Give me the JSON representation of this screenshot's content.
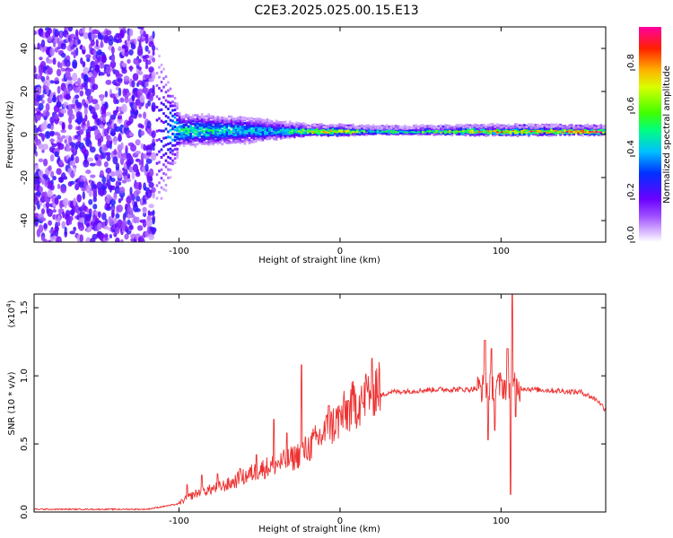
{
  "title": "C2E3.2025.025.00.15.E13",
  "chart_data": [
    {
      "type": "heatmap",
      "xlabel": "Height of straight line (km)",
      "ylabel": "Frequency (Hz)",
      "xlim": [
        -190,
        165
      ],
      "ylim": [
        -50,
        50
      ],
      "xticks": [
        -100,
        0,
        100
      ],
      "yticks": [
        40,
        20,
        0,
        -20,
        -40
      ],
      "colorbar": {
        "label": "Normalized spectral amplitude",
        "range": [
          0,
          1
        ],
        "ticks": [
          "0.0",
          "0.2",
          "0.4",
          "0.6",
          "0.8"
        ]
      },
      "profile": [
        {
          "x": -190,
          "halfwidth": 48,
          "amp": 0.18
        },
        {
          "x": -115,
          "halfwidth": 48,
          "amp": 0.18
        },
        {
          "x": -130,
          "halfwidth": 6,
          "amp": 0.45
        },
        {
          "x": -100,
          "halfwidth": 7,
          "amp": 0.5
        },
        {
          "x": -60,
          "halfwidth": 6,
          "amp": 0.45
        },
        {
          "x": -40,
          "halfwidth": 4,
          "amp": 0.4
        },
        {
          "x": -20,
          "halfwidth": 2,
          "amp": 0.75
        },
        {
          "x": 0,
          "halfwidth": 2,
          "amp": 0.8
        },
        {
          "x": 20,
          "halfwidth": 1.5,
          "amp": 0.5
        },
        {
          "x": 60,
          "halfwidth": 1.5,
          "amp": 0.65
        },
        {
          "x": 100,
          "halfwidth": 2,
          "amp": 0.8
        },
        {
          "x": 165,
          "halfwidth": 1.5,
          "amp": 0.95
        }
      ]
    },
    {
      "type": "line",
      "xlabel": "Height of straight line (km)",
      "ylabel": "SNR (10 * v/v)",
      "ylabel_unit": "(x10",
      "ylabel_unit_exp": "4",
      "ylabel_unit_close": ")",
      "xlim": [
        -190,
        165
      ],
      "ylim": [
        0,
        1.6
      ],
      "xticks": [
        -100,
        0,
        100
      ],
      "yticks": [
        "0.0",
        "0.5",
        "1.0",
        "1.5"
      ],
      "ytick_values": [
        0,
        0.5,
        1.0,
        1.5
      ],
      "series": [
        {
          "color": "#ee3030",
          "trend": [
            [
              -190,
              0.02
            ],
            [
              -120,
              0.02
            ],
            [
              -100,
              0.06
            ],
            [
              -90,
              0.12
            ],
            [
              -70,
              0.18
            ],
            [
              -50,
              0.28
            ],
            [
              -30,
              0.35
            ],
            [
              -20,
              0.42
            ],
            [
              -10,
              0.52
            ],
            [
              0,
              0.62
            ],
            [
              10,
              0.72
            ],
            [
              20,
              0.82
            ],
            [
              30,
              0.88
            ],
            [
              60,
              0.9
            ],
            [
              80,
              0.9
            ],
            [
              100,
              0.93
            ],
            [
              120,
              0.9
            ],
            [
              150,
              0.88
            ],
            [
              160,
              0.82
            ],
            [
              165,
              0.75
            ]
          ],
          "spikes": [
            [
              -95,
              0.2
            ],
            [
              -86,
              0.27
            ],
            [
              -76,
              0.28
            ],
            [
              -62,
              0.32
            ],
            [
              -52,
              0.42
            ],
            [
              -41,
              0.68
            ],
            [
              -33,
              0.58
            ],
            [
              -24,
              1.08
            ],
            [
              -16,
              0.58
            ],
            [
              -7,
              0.78
            ],
            [
              5,
              0.82
            ],
            [
              14,
              0.8
            ],
            [
              90,
              1.26
            ],
            [
              92,
              0.53
            ],
            [
              94,
              1.2
            ],
            [
              96,
              0.6
            ],
            [
              104,
              1.2
            ],
            [
              106,
              0.13
            ],
            [
              107,
              1.6
            ],
            [
              109,
              0.7
            ]
          ]
        }
      ]
    }
  ]
}
